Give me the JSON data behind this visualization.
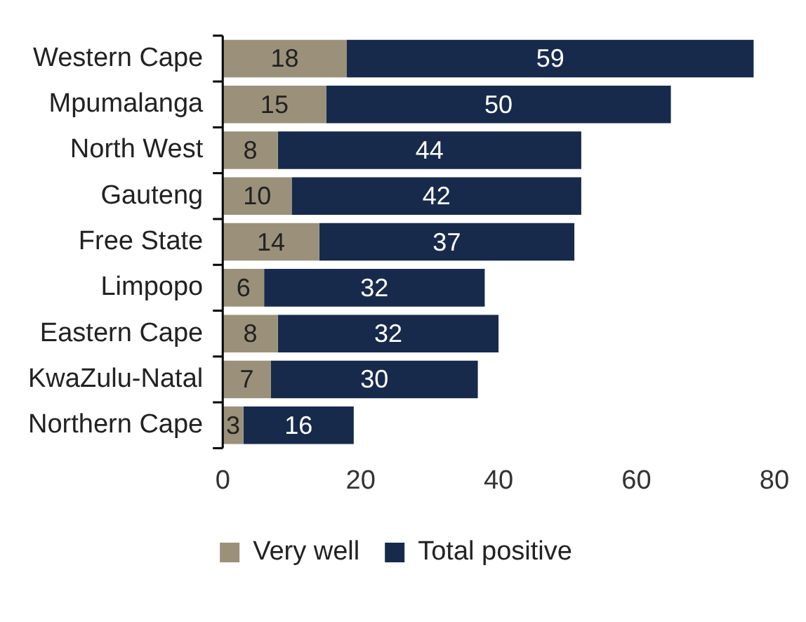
{
  "chart_data": {
    "type": "bar",
    "orientation": "horizontal",
    "stacked": true,
    "categories": [
      "Western Cape",
      "Mpumalanga",
      "North West",
      "Gauteng",
      "Free State",
      "Limpopo",
      "Eastern Cape",
      "KwaZulu-Natal",
      "Northern Cape"
    ],
    "series": [
      {
        "name": "Very well",
        "color": "#9b917a",
        "values": [
          18,
          15,
          8,
          10,
          14,
          6,
          8,
          7,
          3
        ]
      },
      {
        "name": "Total positive",
        "color": "#182a4c",
        "values": [
          59,
          50,
          44,
          42,
          37,
          32,
          32,
          30,
          16
        ]
      }
    ],
    "xlim": [
      0,
      80
    ],
    "xticks": [
      0,
      20,
      40,
      60,
      80
    ],
    "grid": false,
    "legend": "bottom",
    "data_labels": true
  }
}
